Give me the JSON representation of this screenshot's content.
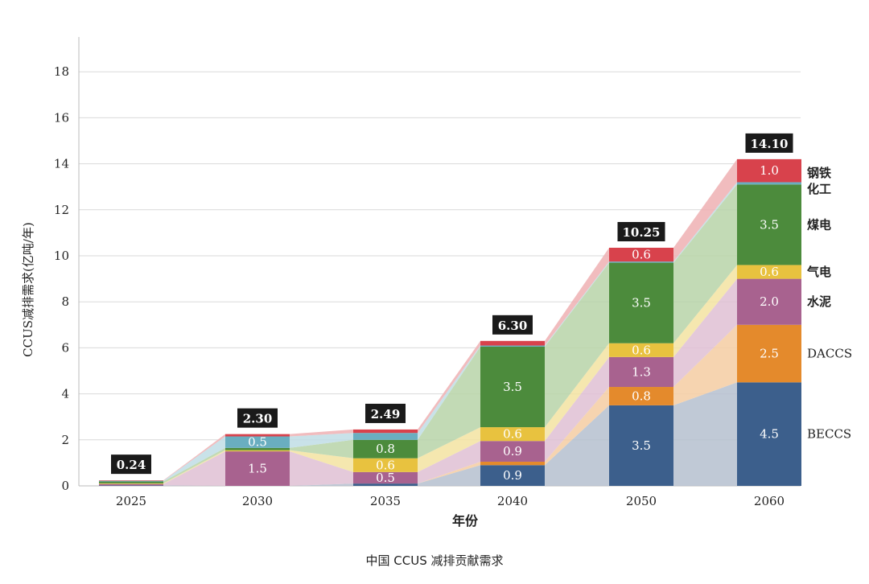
{
  "chart_data": {
    "type": "bar",
    "stacked": true,
    "categories": [
      "2025",
      "2030",
      "2035",
      "2040",
      "2050",
      "2060"
    ],
    "ylim": [
      0,
      19
    ],
    "yticks": [
      0,
      2,
      4,
      6,
      8,
      10,
      12,
      14,
      16,
      18
    ],
    "ylabel": "CCUS减排需求(亿吨/年)",
    "xlabel": "年份",
    "caption": "中国 CCUS 减排贡献需求",
    "grid": true,
    "legend_position": "right-of-last-bar",
    "totals": [
      "0.24",
      "2.30",
      "2.49",
      "6.30",
      "10.25",
      "14.10"
    ],
    "series": [
      {
        "name": "BECCS",
        "color": "#3c5f8c",
        "band_color": "#b5bfcf",
        "values": [
          0.02,
          0.0,
          0.1,
          0.9,
          3.5,
          4.5
        ],
        "labels": [
          "",
          "",
          "",
          "0.9",
          "3.5",
          "4.5"
        ]
      },
      {
        "name": "DACCS",
        "color": "#e48a2c",
        "band_color": "#f4cda2",
        "values": [
          0.0,
          0.0,
          0.0,
          0.15,
          0.8,
          2.5
        ],
        "labels": [
          "",
          "",
          "",
          "",
          "0.8",
          "2.5"
        ]
      },
      {
        "name": "水泥",
        "color": "#a8628f",
        "band_color": "#dfc0d4",
        "values": [
          0.06,
          1.5,
          0.5,
          0.9,
          1.3,
          2.0
        ],
        "labels": [
          "",
          "1.5",
          "0.5",
          "0.9",
          "1.3",
          "2.0"
        ]
      },
      {
        "name": "气电",
        "color": "#e8c23f",
        "band_color": "#f3e3a1",
        "values": [
          0.03,
          0.05,
          0.6,
          0.6,
          0.6,
          0.6
        ],
        "labels": [
          "",
          "",
          "0.6",
          "0.6",
          "0.6",
          "0.6"
        ]
      },
      {
        "name": "煤电",
        "color": "#4c8b3c",
        "band_color": "#b7d3a8",
        "values": [
          0.08,
          0.1,
          0.8,
          3.5,
          3.5,
          3.5
        ],
        "labels": [
          "",
          "",
          "0.8",
          "3.5",
          "3.5",
          "3.5"
        ]
      },
      {
        "name": "化工",
        "color": "#6aaec0",
        "band_color": "#c0dde5",
        "values": [
          0.03,
          0.5,
          0.3,
          0.05,
          0.05,
          0.1
        ],
        "labels": [
          "",
          "0.5",
          "",
          "",
          "",
          ""
        ]
      },
      {
        "name": "钢铁",
        "color": "#d8424c",
        "band_color": "#efb0b3",
        "values": [
          0.02,
          0.1,
          0.15,
          0.2,
          0.6,
          1.0
        ],
        "labels": [
          "",
          "",
          "",
          "",
          "0.6",
          "1.0"
        ]
      }
    ]
  }
}
